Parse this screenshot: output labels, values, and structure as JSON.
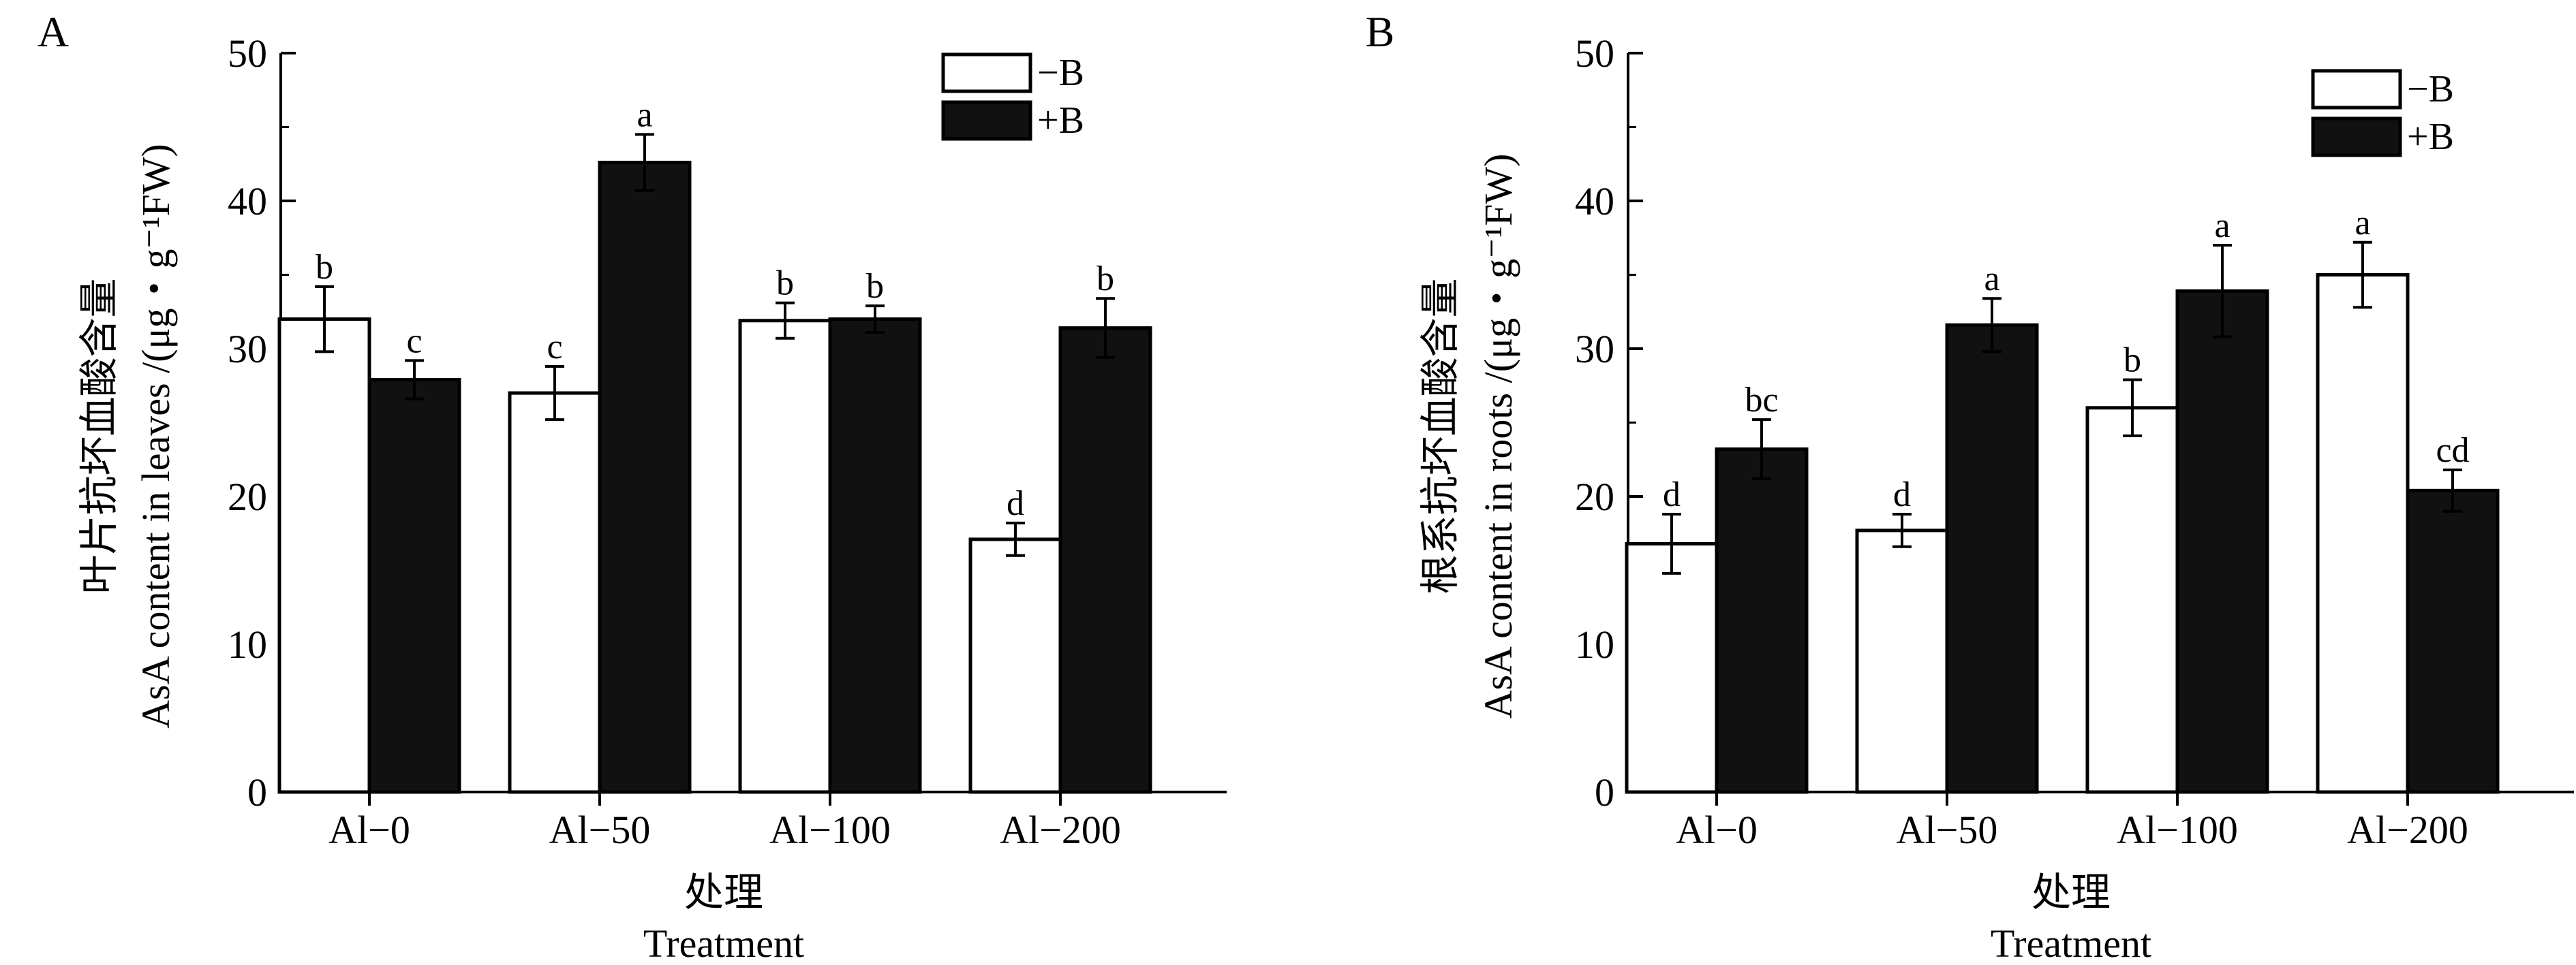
{
  "chart_data": [
    {
      "type": "bar",
      "panel_label": "A",
      "categories": [
        "Al−0",
        "Al−50",
        "Al−100",
        "Al−200"
      ],
      "series": [
        {
          "name": "−B",
          "color": "#ffffff",
          "values": [
            32.0,
            27.0,
            31.9,
            17.1
          ],
          "errors": [
            2.2,
            1.8,
            1.2,
            1.1
          ],
          "labels": [
            "b",
            "c",
            "b",
            "d"
          ]
        },
        {
          "name": "+B",
          "color": "#111111",
          "values": [
            27.9,
            42.6,
            32.0,
            31.4
          ],
          "errors": [
            1.3,
            1.9,
            0.9,
            2.0
          ],
          "labels": [
            "c",
            "a",
            "b",
            "b"
          ]
        }
      ],
      "ylabel_cn": "叶片抗坏血酸含量",
      "ylabel_en": "AsA content in leaves /(μg・g⁻¹FW)",
      "xlabel_cn": "处理",
      "xlabel_en": "Treatment",
      "ylim": [
        0,
        50
      ],
      "yticks": [
        0,
        10,
        20,
        30,
        40,
        50
      ],
      "legend_position": "top-right",
      "grid": false
    },
    {
      "type": "bar",
      "panel_label": "B",
      "categories": [
        "Al−0",
        "Al−50",
        "Al−100",
        "Al−200"
      ],
      "series": [
        {
          "name": "−B",
          "color": "#ffffff",
          "values": [
            16.8,
            17.7,
            26.0,
            35.0
          ],
          "errors": [
            2.0,
            1.1,
            1.9,
            2.2
          ],
          "labels": [
            "d",
            "d",
            "b",
            "a"
          ]
        },
        {
          "name": "+B",
          "color": "#111111",
          "values": [
            23.2,
            31.6,
            33.9,
            20.4
          ],
          "errors": [
            2.0,
            1.8,
            3.1,
            1.4
          ],
          "labels": [
            "bc",
            "a",
            "a",
            "cd"
          ]
        }
      ],
      "ylabel_cn": "根系抗坏血酸含量",
      "ylabel_en": "AsA content in  roots /(μg・g⁻¹FW)",
      "xlabel_cn": "处理",
      "xlabel_en": "Treatment",
      "ylim": [
        0,
        50
      ],
      "yticks": [
        0,
        10,
        20,
        30,
        40,
        50
      ],
      "legend_position": "top-right",
      "grid": false
    }
  ]
}
